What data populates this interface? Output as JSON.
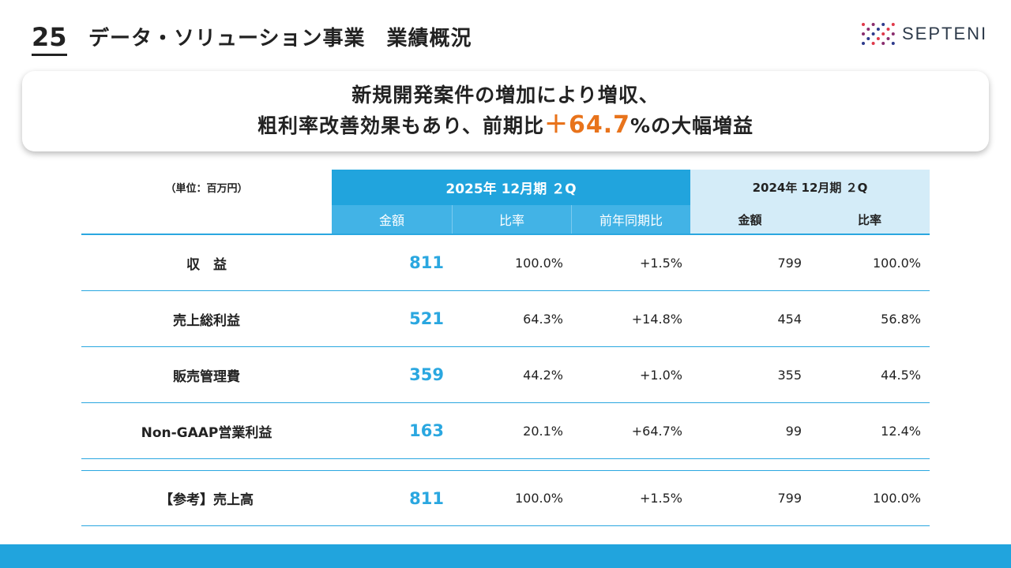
{
  "header": {
    "page_number": "25",
    "title": "データ・ソリューション事業　業績概況",
    "logo_text": "SEPTENI"
  },
  "headline": {
    "line1": "新規開発案件の増加により増収、",
    "line2_prefix": "粗利率改善効果もあり、前期比",
    "line2_highlight": "＋64.7",
    "line2_suffix": "%の大幅増益",
    "highlight_color": "#e8731b"
  },
  "table": {
    "unit_label": "（単位：百万円）",
    "current_period": "2025年 12月期 ２Q",
    "previous_period": "2024年 12月期 ２Q",
    "sub_headers": [
      "金額",
      "比率",
      "前年同期比",
      "金額",
      "比率"
    ],
    "rows": [
      {
        "label": "収　益",
        "amount": "811",
        "ratio": "100.0%",
        "yoy": "+1.5%",
        "prev_amount": "799",
        "prev_ratio": "100.0%"
      },
      {
        "label": "売上総利益",
        "amount": "521",
        "ratio": "64.3%",
        "yoy": "+14.8%",
        "prev_amount": "454",
        "prev_ratio": "56.8%"
      },
      {
        "label": "販売管理費",
        "amount": "359",
        "ratio": "44.2%",
        "yoy": "+1.0%",
        "prev_amount": "355",
        "prev_ratio": "44.5%"
      },
      {
        "label": "Non-GAAP営業利益",
        "amount": "163",
        "ratio": "20.1%",
        "yoy": "+64.7%",
        "prev_amount": "99",
        "prev_ratio": "12.4%"
      }
    ],
    "reference_row": {
      "label": "【参考】売上高",
      "amount": "811",
      "ratio": "100.0%",
      "yoy": "+1.5%",
      "prev_amount": "799",
      "prev_ratio": "100.0%"
    }
  },
  "colors": {
    "accent_blue": "#21a4dd",
    "light_blue": "#d4ecf8",
    "orange": "#e8731b"
  }
}
